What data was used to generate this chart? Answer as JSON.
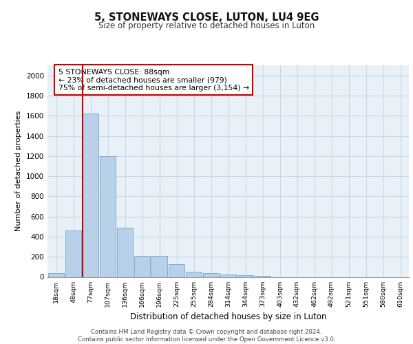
{
  "title": "5, STONEWAYS CLOSE, LUTON, LU4 9EG",
  "subtitle": "Size of property relative to detached houses in Luton",
  "xlabel": "Distribution of detached houses by size in Luton",
  "ylabel": "Number of detached properties",
  "bar_color": "#b8d0e8",
  "bar_edge_color": "#7aafd4",
  "categories": [
    "18sqm",
    "48sqm",
    "77sqm",
    "107sqm",
    "136sqm",
    "166sqm",
    "196sqm",
    "225sqm",
    "255sqm",
    "284sqm",
    "314sqm",
    "344sqm",
    "373sqm",
    "403sqm",
    "432sqm",
    "462sqm",
    "492sqm",
    "521sqm",
    "551sqm",
    "580sqm",
    "610sqm"
  ],
  "values": [
    35,
    460,
    1620,
    1200,
    490,
    210,
    210,
    125,
    50,
    40,
    25,
    20,
    10,
    0,
    0,
    0,
    0,
    0,
    0,
    0,
    0
  ],
  "ylim": [
    0,
    2100
  ],
  "yticks": [
    0,
    200,
    400,
    600,
    800,
    1000,
    1200,
    1400,
    1600,
    1800,
    2000
  ],
  "property_line_color": "#cc0000",
  "annotation_text": "5 STONEWAYS CLOSE: 88sqm\n← 23% of detached houses are smaller (979)\n75% of semi-detached houses are larger (3,154) →",
  "annotation_box_color": "#ffffff",
  "annotation_box_edge": "#cc0000",
  "footer_text": "Contains HM Land Registry data © Crown copyright and database right 2024.\nContains public sector information licensed under the Open Government Licence v3.0.",
  "grid_color": "#c8d8ea",
  "background_color": "#e8f0f8"
}
